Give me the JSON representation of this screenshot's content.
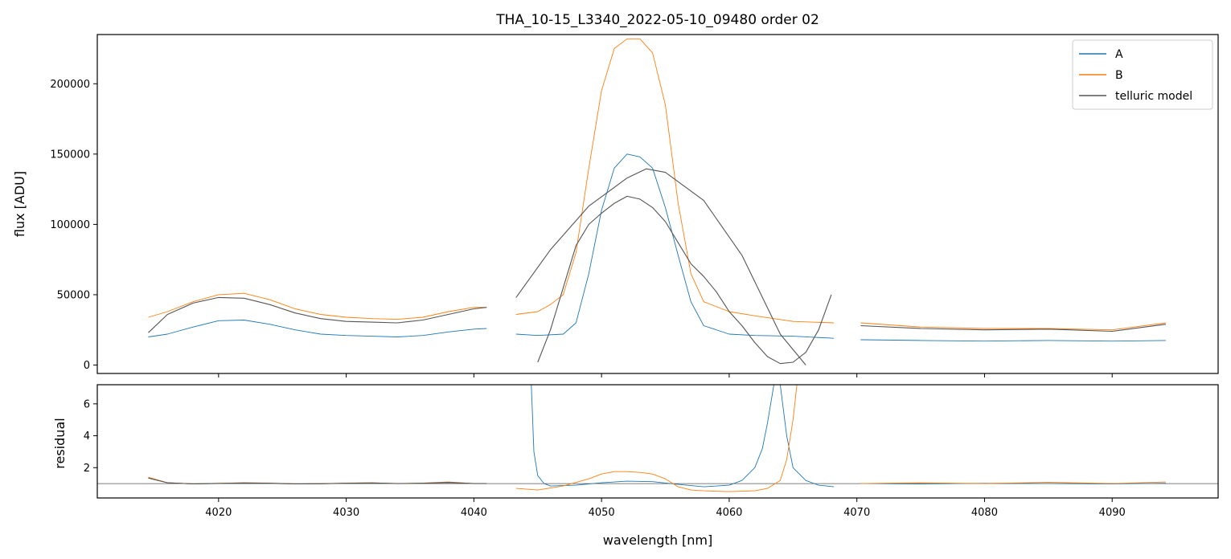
{
  "chart_data": [
    {
      "type": "line",
      "title": "THA_10-15_L3340_2022-05-10_09480  order 02",
      "xlabel": "",
      "ylabel": "flux [ADU]",
      "xlim": [
        4010.5,
        4098.3
      ],
      "ylim": [
        -6000,
        235000
      ],
      "yticks": [
        0,
        50000,
        100000,
        150000,
        200000
      ],
      "ytick_labels": [
        "0",
        "50000",
        "100000",
        "150000",
        "200000"
      ],
      "xticks": [
        4020,
        4030,
        4040,
        4050,
        4060,
        4070,
        4080,
        4090
      ],
      "grid": false,
      "legend_position": "top-right",
      "colors": {
        "A": "#1f77b4",
        "B": "#ff7f0e",
        "telluric model": "#555555"
      },
      "legend": [
        "A",
        "B",
        "telluric model"
      ],
      "series": [
        {
          "name": "A",
          "segments": [
            {
              "x": [
                4014.5,
                4016,
                4018,
                4020,
                4022,
                4024,
                4026,
                4028,
                4030,
                4032,
                4034,
                4036,
                4038,
                4040,
                4041
              ],
              "y": [
                20000,
                22000,
                27000,
                31500,
                32000,
                29000,
                25000,
                22000,
                21000,
                20500,
                20000,
                21000,
                23500,
                25500,
                26000
              ]
            },
            {
              "x": [
                4043.3,
                4045,
                4047,
                4048,
                4049,
                4050,
                4051,
                4052,
                4053,
                4054,
                4055,
                4056,
                4057,
                4058,
                4060,
                4062,
                4065,
                4068.2
              ],
              "y": [
                22000,
                21000,
                22000,
                30000,
                65000,
                110000,
                140000,
                150000,
                148000,
                140000,
                112000,
                78000,
                45000,
                28000,
                22000,
                21000,
                20500,
                19000
              ]
            },
            {
              "x": [
                4070.3,
                4075,
                4080,
                4085,
                4090,
                4094.2
              ],
              "y": [
                18000,
                17500,
                17000,
                17500,
                17000,
                17500
              ]
            }
          ]
        },
        {
          "name": "B",
          "segments": [
            {
              "x": [
                4014.5,
                4016,
                4018,
                4020,
                4022,
                4024,
                4026,
                4028,
                4030,
                4032,
                4034,
                4036,
                4038,
                4040,
                4041
              ],
              "y": [
                34000,
                38000,
                45000,
                50000,
                51000,
                46500,
                40000,
                36000,
                34000,
                33000,
                32500,
                34000,
                38000,
                41000,
                41000
              ]
            },
            {
              "x": [
                4043.3,
                4045,
                4046,
                4047,
                4048,
                4049,
                4050,
                4051,
                4052,
                4053,
                4054,
                4055,
                4056,
                4057,
                4058,
                4060,
                4062,
                4065,
                4068.2
              ],
              "y": [
                36000,
                38000,
                43000,
                50000,
                80000,
                140000,
                195000,
                225000,
                232000,
                232000,
                222000,
                185000,
                115000,
                65000,
                45000,
                38000,
                35000,
                31000,
                30000
              ]
            },
            {
              "x": [
                4070.3,
                4075,
                4080,
                4085,
                4090,
                4094.2
              ],
              "y": [
                30000,
                27000,
                26000,
                26000,
                25000,
                30000
              ]
            }
          ]
        },
        {
          "name": "telluric model",
          "segments": [
            {
              "x": [
                4014.5,
                4016,
                4018,
                4020,
                4022,
                4024,
                4026,
                4028,
                4030,
                4032,
                4034,
                4036,
                4038,
                4040,
                4041
              ],
              "y": [
                23000,
                36000,
                44000,
                48000,
                47500,
                43000,
                37000,
                33000,
                31000,
                30500,
                30000,
                32000,
                36000,
                40000,
                41000
              ]
            },
            {
              "x": [
                4043.3,
                4046,
                4049,
                4052,
                4053.5,
                4055,
                4058,
                4061,
                4064,
                4066
              ],
              "y": [
                48000,
                82000,
                113000,
                133000,
                139500,
                137000,
                117000,
                78000,
                22000,
                0
              ]
            },
            {
              "x": [
                4045,
                4046,
                4047,
                4048,
                4049,
                4050,
                4051,
                4052,
                4053,
                4054,
                4055,
                4056,
                4057,
                4058,
                4059,
                4060,
                4061,
                4062,
                4063,
                4064,
                4065,
                4066,
                4067,
                4068
              ],
              "y": [
                2000,
                25000,
                55000,
                85000,
                100000,
                108000,
                115000,
                120000,
                118000,
                112000,
                102000,
                87000,
                72000,
                63000,
                52000,
                38000,
                28000,
                16000,
                6000,
                1000,
                2000,
                9000,
                25000,
                50000
              ]
            },
            {
              "x": [
                4070.3,
                4075,
                4080,
                4085,
                4090,
                4094.2
              ],
              "y": [
                28000,
                26000,
                25000,
                25500,
                24000,
                29000
              ]
            }
          ]
        }
      ]
    },
    {
      "type": "line",
      "title": "",
      "xlabel": "wavelength [nm]",
      "ylabel": "residual",
      "xlim": [
        4010.5,
        4098.3
      ],
      "ylim": [
        0.1,
        7.2
      ],
      "yticks": [
        2,
        4,
        6
      ],
      "ytick_labels": [
        "2",
        "4",
        "6"
      ],
      "xticks": [
        4020,
        4030,
        4040,
        4050,
        4060,
        4070,
        4080,
        4090
      ],
      "xtick_labels": [
        "4020",
        "4030",
        "4040",
        "4050",
        "4060",
        "4070",
        "4080",
        "4090"
      ],
      "reference_line_y": 1.0,
      "grid": false,
      "series": [
        {
          "name": "A",
          "segments": [
            {
              "x": [
                4014.5,
                4016,
                4018,
                4020,
                4022,
                4024,
                4026,
                4028,
                4030,
                4032,
                4034,
                4036,
                4038,
                4040,
                4041
              ],
              "y": [
                1.35,
                1.05,
                0.98,
                1.0,
                1.03,
                1.01,
                0.98,
                0.99,
                1.02,
                1.03,
                1.0,
                1.02,
                1.05,
                1.0,
                1.0
              ]
            },
            {
              "x": [
                4044.5,
                4044.7,
                4045,
                4045.5,
                4046,
                4048,
                4050,
                4052,
                4054,
                4056,
                4058,
                4060,
                4061,
                4062,
                4062.6,
                4063,
                4063.5,
                4064,
                4064.5,
                4065,
                4066,
                4067,
                4068.2
              ],
              "y": [
                7.2,
                3.0,
                1.5,
                1.0,
                0.85,
                0.9,
                1.05,
                1.15,
                1.12,
                0.95,
                0.8,
                0.9,
                1.2,
                2.0,
                3.2,
                4.8,
                7.2,
                7.2,
                4.0,
                2.0,
                1.2,
                0.9,
                0.8
              ]
            },
            {
              "x": [
                4070.3,
                4075,
                4080,
                4085,
                4090,
                4094.2
              ],
              "y": [
                1.0,
                0.98,
                1.02,
                1.0,
                0.98,
                1.02
              ]
            }
          ]
        },
        {
          "name": "B",
          "segments": [
            {
              "x": [
                4014.5,
                4016,
                4018,
                4020,
                4022,
                4024,
                4026,
                4028,
                4030,
                4032,
                4034,
                4036,
                4038,
                4040,
                4041
              ],
              "y": [
                1.4,
                1.05,
                0.98,
                1.02,
                1.05,
                1.03,
                0.98,
                0.99,
                1.03,
                1.05,
                1.0,
                1.03,
                1.1,
                1.0,
                1.0
              ]
            },
            {
              "x": [
                4043.3,
                4045,
                4047,
                4049,
                4050,
                4051,
                4052,
                4053,
                4054,
                4055,
                4056,
                4057,
                4058,
                4060,
                4062,
                4063,
                4064,
                4064.5,
                4065,
                4065.3
              ],
              "y": [
                0.7,
                0.6,
                0.85,
                1.3,
                1.6,
                1.75,
                1.75,
                1.7,
                1.6,
                1.3,
                0.8,
                0.6,
                0.55,
                0.5,
                0.55,
                0.7,
                1.2,
                2.5,
                5.0,
                7.2
              ]
            },
            {
              "x": [
                4070.3,
                4075,
                4080,
                4085,
                4090,
                4094.2
              ],
              "y": [
                1.0,
                1.05,
                1.0,
                1.08,
                1.0,
                1.1
              ]
            }
          ]
        },
        {
          "name": "telluric model",
          "segments": [
            {
              "x": [
                4014.5,
                4016,
                4018,
                4020,
                4022,
                4024,
                4026,
                4028,
                4030,
                4032,
                4034,
                4036,
                4038,
                4040,
                4041
              ],
              "y": [
                1.35,
                1.05,
                0.98,
                1.01,
                1.04,
                1.02,
                0.98,
                0.99,
                1.02,
                1.04,
                1.0,
                1.02,
                1.07,
                1.0,
                1.0
              ]
            }
          ]
        }
      ]
    }
  ]
}
